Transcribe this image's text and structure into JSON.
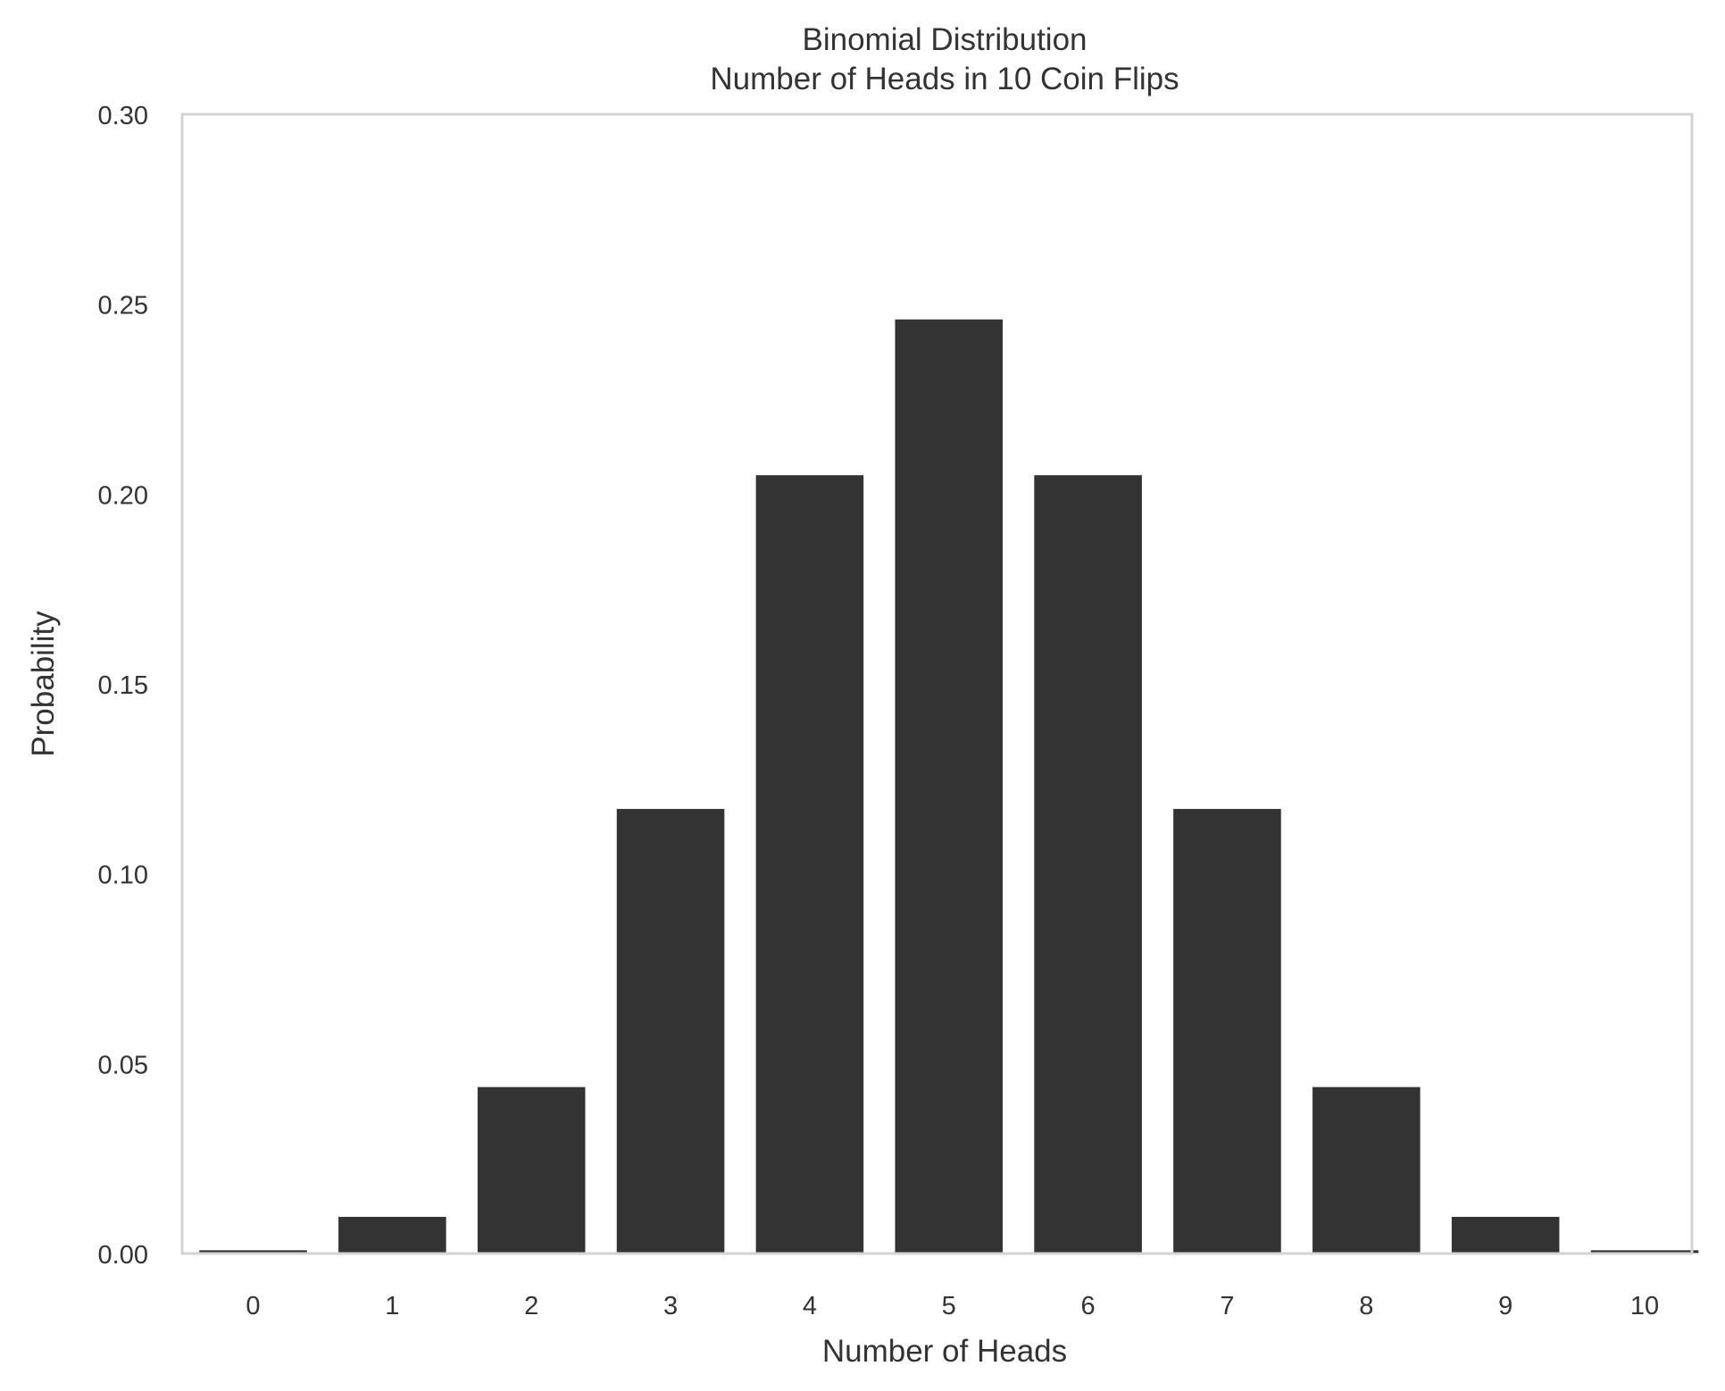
{
  "chart_data": {
    "type": "bar",
    "title": "Binomial Distribution",
    "subtitle": "Number of Heads in 10 Coin Flips",
    "xlabel": "Number of Heads",
    "ylabel": "Probability",
    "categories": [
      "0",
      "1",
      "2",
      "3",
      "4",
      "5",
      "6",
      "7",
      "8",
      "9",
      "10"
    ],
    "x": [
      0,
      1,
      2,
      3,
      4,
      5,
      6,
      7,
      8,
      9,
      10
    ],
    "values": [
      0.000977,
      0.009766,
      0.043945,
      0.117188,
      0.205078,
      0.246094,
      0.205078,
      0.117188,
      0.043945,
      0.009766,
      0.000977
    ],
    "xlim": [
      -0.51,
      10.34
    ],
    "ylim": [
      0,
      0.3
    ],
    "yticks": [
      "0.00",
      "0.05",
      "0.10",
      "0.15",
      "0.20",
      "0.25",
      "0.30"
    ],
    "xticks": [
      "0",
      "1",
      "2",
      "3",
      "4",
      "5",
      "6",
      "7",
      "8",
      "9",
      "10"
    ],
    "grid": false,
    "bar_color": "#333333",
    "frame_color": "#d3d3d3"
  }
}
